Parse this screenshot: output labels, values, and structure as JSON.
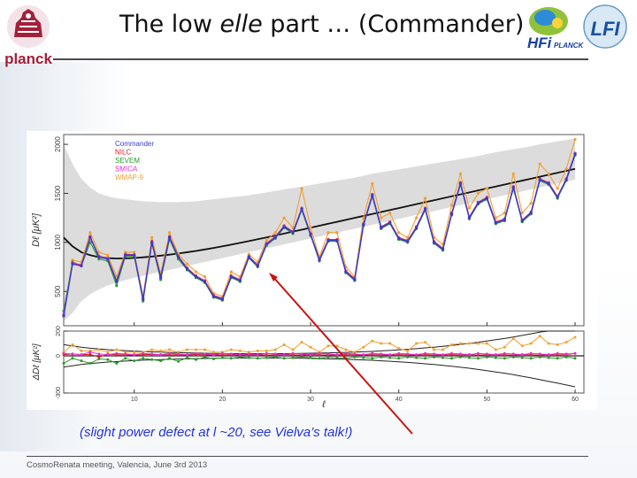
{
  "slide": {
    "title_parts": [
      "The low ",
      "elle",
      " part … (Commander)"
    ],
    "caption": "(slight power defect at l  ~20, see Vielva’s talk!)",
    "footer": "CosmoRenata meeting, Valencia, June 3rd 2013",
    "logo_left_text": "planck",
    "logo_right_texts": [
      "HFi",
      "PLANCK",
      "LFI"
    ]
  },
  "colors": {
    "Commander": "#3a3ad0",
    "NILC": "#d62020",
    "SEVEM": "#2a9a2a",
    "SMICA": "#e030d0",
    "WMAP-9": "#f0a030",
    "model": "#111111",
    "band": "#d0d0d0",
    "arrow": "#cc1111",
    "caption": "#2233dd"
  },
  "chart_data": [
    {
      "type": "line",
      "ylabel": "Dℓ [μK²]",
      "xlim": [
        2,
        61
      ],
      "ylim": [
        150,
        2100
      ],
      "yticks": [
        500,
        1000,
        1500,
        2000
      ],
      "grid": false,
      "legend": "top-left",
      "x": [
        2,
        3,
        4,
        5,
        6,
        7,
        8,
        9,
        10,
        11,
        12,
        13,
        14,
        15,
        16,
        17,
        18,
        19,
        20,
        21,
        22,
        23,
        24,
        25,
        26,
        27,
        28,
        29,
        30,
        31,
        32,
        33,
        34,
        35,
        36,
        37,
        38,
        39,
        40,
        41,
        42,
        43,
        44,
        45,
        46,
        47,
        48,
        49,
        50,
        51,
        52,
        53,
        54,
        55,
        56,
        57,
        58,
        59,
        60
      ],
      "model": [
        1050,
        960,
        900,
        870,
        850,
        840,
        836,
        838,
        842,
        848,
        856,
        865,
        875,
        887,
        900,
        913,
        928,
        943,
        960,
        977,
        995,
        1013,
        1032,
        1051,
        1071,
        1090,
        1110,
        1130,
        1150,
        1170,
        1190,
        1210,
        1230,
        1250,
        1270,
        1290,
        1310,
        1330,
        1350,
        1370,
        1390,
        1410,
        1430,
        1450,
        1470,
        1490,
        1510,
        1530,
        1550,
        1570,
        1590,
        1610,
        1630,
        1650,
        1670,
        1690,
        1710,
        1730,
        1750
      ],
      "band_upper": [
        2000,
        1800,
        1650,
        1560,
        1500,
        1470,
        1450,
        1440,
        1430,
        1420,
        1415,
        1410,
        1410,
        1410,
        1415,
        1420,
        1430,
        1440,
        1450,
        1460,
        1470,
        1480,
        1495,
        1510,
        1525,
        1540,
        1555,
        1570,
        1585,
        1600,
        1615,
        1630,
        1645,
        1660,
        1680,
        1700,
        1715,
        1730,
        1745,
        1760,
        1775,
        1790,
        1805,
        1820,
        1835,
        1850,
        1865,
        1880,
        1900,
        1920,
        1935,
        1950,
        1965,
        1980,
        2000,
        2015,
        2030,
        2045,
        2060
      ],
      "band_lower": [
        200,
        280,
        400,
        470,
        520,
        560,
        590,
        615,
        640,
        660,
        680,
        700,
        720,
        740,
        760,
        780,
        800,
        820,
        840,
        860,
        880,
        900,
        920,
        940,
        960,
        980,
        1000,
        1020,
        1040,
        1060,
        1080,
        1100,
        1120,
        1140,
        1160,
        1180,
        1200,
        1220,
        1240,
        1260,
        1280,
        1300,
        1320,
        1340,
        1360,
        1380,
        1400,
        1420,
        1440,
        1460,
        1480,
        1500,
        1520,
        1540,
        1560,
        1580,
        1600,
        1620,
        1640
      ],
      "series": [
        {
          "name": "Commander",
          "values": [
            250,
            780,
            760,
            1050,
            850,
            830,
            600,
            870,
            870,
            420,
            1000,
            640,
            1050,
            850,
            730,
            650,
            600,
            450,
            420,
            650,
            610,
            850,
            760,
            980,
            1050,
            1160,
            1100,
            1340,
            1080,
            820,
            1020,
            1020,
            700,
            620,
            1180,
            1480,
            1150,
            1200,
            1040,
            1010,
            1150,
            1340,
            1000,
            930,
            1290,
            1600,
            1250,
            1400,
            1450,
            1200,
            1230,
            1560,
            1220,
            1300,
            1640,
            1600,
            1460,
            1640,
            1900
          ]
        },
        {
          "name": "NILC",
          "values": [
            260,
            790,
            770,
            1060,
            860,
            840,
            610,
            880,
            875,
            430,
            1010,
            650,
            1060,
            860,
            740,
            660,
            610,
            460,
            430,
            660,
            620,
            860,
            770,
            990,
            1060,
            1170,
            1110,
            1350,
            1090,
            830,
            1030,
            1030,
            710,
            630,
            1190,
            1490,
            1160,
            1210,
            1050,
            1020,
            1160,
            1350,
            1010,
            940,
            1300,
            1610,
            1260,
            1410,
            1460,
            1210,
            1240,
            1570,
            1230,
            1310,
            1650,
            1610,
            1470,
            1650,
            1910
          ]
        },
        {
          "name": "SEVEM",
          "values": [
            300,
            800,
            760,
            1000,
            830,
            810,
            560,
            860,
            860,
            400,
            990,
            620,
            1030,
            830,
            720,
            640,
            590,
            440,
            410,
            640,
            600,
            840,
            750,
            970,
            1040,
            1150,
            1090,
            1330,
            1070,
            810,
            1010,
            1010,
            690,
            610,
            1170,
            1470,
            1140,
            1190,
            1030,
            1000,
            1140,
            1330,
            990,
            920,
            1280,
            1590,
            1240,
            1390,
            1440,
            1190,
            1220,
            1550,
            1210,
            1290,
            1630,
            1590,
            1450,
            1630,
            1890
          ]
        },
        {
          "name": "SMICA",
          "values": [
            270,
            785,
            765,
            1055,
            855,
            835,
            605,
            875,
            872,
            425,
            1005,
            645,
            1055,
            855,
            735,
            655,
            605,
            455,
            425,
            655,
            615,
            855,
            765,
            985,
            1055,
            1165,
            1105,
            1345,
            1085,
            825,
            1025,
            1025,
            705,
            625,
            1185,
            1485,
            1155,
            1205,
            1045,
            1015,
            1155,
            1345,
            1005,
            935,
            1295,
            1605,
            1255,
            1405,
            1455,
            1205,
            1235,
            1565,
            1225,
            1305,
            1645,
            1605,
            1465,
            1645,
            1905
          ]
        },
        {
          "name": "WMAP-9",
          "values": [
            240,
            820,
            800,
            1100,
            900,
            870,
            650,
            900,
            900,
            450,
            1050,
            680,
            1100,
            880,
            780,
            700,
            650,
            480,
            450,
            700,
            650,
            880,
            800,
            1020,
            1100,
            1250,
            1150,
            1550,
            1150,
            850,
            1100,
            1100,
            750,
            650,
            1250,
            1600,
            1250,
            1300,
            1100,
            1050,
            1250,
            1450,
            1050,
            980,
            1380,
            1700,
            1350,
            1500,
            1550,
            1250,
            1300,
            1700,
            1300,
            1400,
            1800,
            1700,
            1550,
            1750,
            2050
          ]
        }
      ]
    },
    {
      "type": "line",
      "ylabel": "ΔDℓ [μK²]",
      "xlabel": "ℓ",
      "xlim": [
        2,
        61
      ],
      "ylim": [
        -300,
        200
      ],
      "yticks": [
        -300,
        0,
        200
      ],
      "xticks": [
        10,
        20,
        30,
        40,
        50,
        60
      ],
      "grid": false,
      "x": [
        2,
        3,
        4,
        5,
        6,
        7,
        8,
        9,
        10,
        11,
        12,
        13,
        14,
        15,
        16,
        17,
        18,
        19,
        20,
        21,
        22,
        23,
        24,
        25,
        26,
        27,
        28,
        29,
        30,
        31,
        32,
        33,
        34,
        35,
        36,
        37,
        38,
        39,
        40,
        41,
        42,
        43,
        44,
        45,
        46,
        47,
        48,
        49,
        50,
        51,
        52,
        53,
        54,
        55,
        56,
        57,
        58,
        59,
        60
      ],
      "envelope_upper": [
        90,
        80,
        70,
        62,
        56,
        50,
        46,
        42,
        38,
        35,
        32,
        30,
        28,
        26,
        24,
        22,
        21,
        20,
        19,
        18,
        18,
        18,
        18,
        18,
        18,
        18,
        19,
        20,
        21,
        22,
        24,
        26,
        28,
        30,
        33,
        36,
        40,
        44,
        48,
        53,
        58,
        64,
        70,
        77,
        84,
        92,
        100,
        110,
        120,
        130,
        140,
        152,
        165,
        178,
        192,
        206,
        220,
        235,
        250
      ],
      "envelope_lower": [
        -90,
        -80,
        -70,
        -62,
        -56,
        -50,
        -46,
        -42,
        -38,
        -35,
        -32,
        -30,
        -28,
        -26,
        -24,
        -22,
        -21,
        -20,
        -19,
        -18,
        -18,
        -18,
        -18,
        -18,
        -18,
        -18,
        -19,
        -20,
        -21,
        -22,
        -24,
        -26,
        -28,
        -30,
        -33,
        -36,
        -40,
        -44,
        -48,
        -53,
        -58,
        -64,
        -70,
        -77,
        -84,
        -92,
        -100,
        -110,
        -120,
        -130,
        -140,
        -152,
        -165,
        -178,
        -192,
        -206,
        -220,
        -235,
        -250
      ],
      "series": [
        {
          "name": "NILC",
          "values": [
            10,
            15,
            10,
            12,
            -10,
            12,
            10,
            8,
            6,
            10,
            12,
            10,
            8,
            10,
            6,
            12,
            8,
            6,
            8,
            10,
            6,
            10,
            8,
            6,
            8,
            10,
            8,
            6,
            10,
            8,
            6,
            8,
            10,
            8,
            6,
            10,
            8,
            6,
            10,
            8,
            6,
            10,
            8,
            6,
            10,
            8,
            10,
            6,
            8,
            10,
            8,
            6,
            10,
            8,
            6,
            10,
            8,
            10,
            20
          ]
        },
        {
          "name": "SEVEM",
          "values": [
            -60,
            -20,
            -40,
            -60,
            -25,
            -30,
            -60,
            -20,
            -40,
            -20,
            -30,
            -40,
            -20,
            -45,
            -15,
            -30,
            -10,
            -25,
            -15,
            -20,
            -10,
            -15,
            -20,
            -15,
            -10,
            -20,
            -15,
            -10,
            -15,
            -20,
            -10,
            -15,
            -20,
            -10,
            -15,
            -20,
            -10,
            -15,
            -20,
            -10,
            -15,
            -20,
            -10,
            -15,
            -20,
            -10,
            -15,
            -20,
            -10,
            -15,
            -20,
            -10,
            -15,
            -20,
            -10,
            -15,
            -20,
            -10,
            -20
          ]
        },
        {
          "name": "SMICA",
          "values": [
            20,
            15,
            10,
            30,
            15,
            10,
            20,
            15,
            10,
            20,
            15,
            10,
            20,
            15,
            10,
            20,
            15,
            10,
            20,
            15,
            10,
            15,
            10,
            20,
            15,
            10,
            20,
            15,
            10,
            20,
            15,
            10,
            20,
            15,
            10,
            20,
            15,
            10,
            20,
            15,
            10,
            20,
            15,
            10,
            20,
            15,
            10,
            20,
            15,
            10,
            20,
            15,
            10,
            20,
            15,
            10,
            20,
            15,
            20
          ]
        },
        {
          "name": "WMAP-9",
          "values": [
            30,
            90,
            40,
            40,
            50,
            30,
            50,
            30,
            30,
            30,
            50,
            40,
            50,
            30,
            50,
            50,
            50,
            30,
            30,
            50,
            40,
            30,
            40,
            40,
            50,
            90,
            50,
            110,
            70,
            30,
            80,
            80,
            50,
            30,
            70,
            120,
            100,
            100,
            60,
            40,
            100,
            110,
            50,
            50,
            90,
            100,
            100,
            100,
            100,
            50,
            70,
            140,
            80,
            100,
            160,
            100,
            90,
            110,
            150
          ]
        }
      ]
    }
  ]
}
